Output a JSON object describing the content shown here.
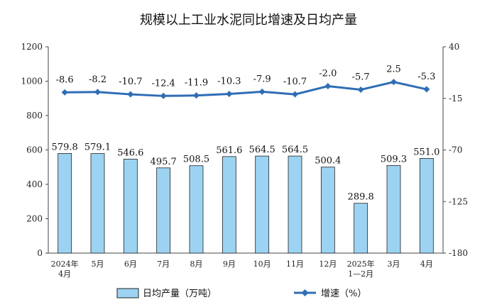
{
  "chart_data": {
    "type": "bar+line",
    "title": "规模以上工业水泥同比增速及日均产量",
    "categories": [
      [
        "2024年",
        "4月"
      ],
      [
        "5月"
      ],
      [
        "6月"
      ],
      [
        "7月"
      ],
      [
        "8月"
      ],
      [
        "9月"
      ],
      [
        "10月"
      ],
      [
        "11月"
      ],
      [
        "12月"
      ],
      [
        "2025年",
        "1—2月"
      ],
      [
        "3月"
      ],
      [
        "4月"
      ]
    ],
    "bar_series": {
      "name": "日均产量（万吨）",
      "values": [
        579.8,
        579.1,
        546.6,
        495.7,
        508.5,
        561.6,
        564.5,
        564.5,
        500.4,
        289.8,
        509.3,
        551.0
      ],
      "labels": [
        "579.8",
        "579.1",
        "546.6",
        "495.7",
        "508.5",
        "561.6",
        "564.5",
        "564.5",
        "500.4",
        "289.8",
        "509.3",
        "551.0"
      ],
      "color": "#9dd3f2",
      "border": "#222222"
    },
    "line_series": {
      "name": "增速（%）",
      "values": [
        -8.6,
        -8.2,
        -10.7,
        -12.4,
        -11.9,
        -10.3,
        -7.9,
        -10.7,
        -2.0,
        -5.7,
        2.5,
        -5.3
      ],
      "labels": [
        "-8.6",
        "-8.2",
        "-10.7",
        "-12.4",
        "-11.9",
        "-10.3",
        "-7.9",
        "-10.7",
        "-2.0",
        "-5.7",
        "2.5",
        "-5.3"
      ],
      "color": "#2f6db5"
    },
    "y_left": {
      "min": 0,
      "max": 1200,
      "ticks": [
        "0",
        "200",
        "400",
        "600",
        "800",
        "1000",
        "1200"
      ]
    },
    "y_right": {
      "min": -180,
      "max": 40,
      "ticks": [
        "40",
        "-15",
        "-70",
        "-125",
        "-180"
      ]
    },
    "grid": false,
    "legend_position": "bottom"
  }
}
